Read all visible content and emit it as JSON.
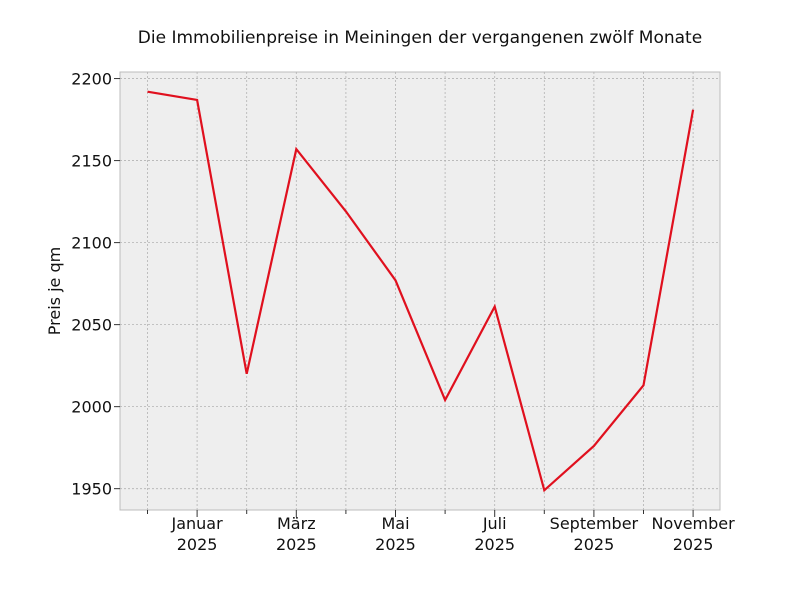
{
  "chart_data": {
    "type": "line",
    "title": "Die Immobilienpreise in Meiningen der vergangenen zwölf Monate",
    "xlabel": "",
    "ylabel": "Preis je qm",
    "x": [
      "2024-12",
      "2025-01",
      "2025-02",
      "2025-03",
      "2025-04",
      "2025-05",
      "2025-06",
      "2025-07",
      "2025-08",
      "2025-09",
      "2025-10",
      "2025-11"
    ],
    "x_tick_labels": [
      {
        "month": "Januar",
        "year": "2025"
      },
      {
        "month": "März",
        "year": "2025"
      },
      {
        "month": "Mai",
        "year": "2025"
      },
      {
        "month": "Juli",
        "year": "2025"
      },
      {
        "month": "September",
        "year": "2025"
      },
      {
        "month": "November",
        "year": "2025"
      }
    ],
    "series": [
      {
        "values": [
          2192,
          2187,
          2020,
          2157,
          2119,
          2077,
          2004,
          2061,
          1949,
          1976,
          2013,
          2181
        ]
      }
    ],
    "yticks": [
      1950,
      2000,
      2050,
      2100,
      2150,
      2200
    ],
    "ylim": [
      1937,
      2204
    ],
    "grid": true,
    "colors": {
      "line": "#e0101e",
      "plot_background": "#eeeeee",
      "grid": "#b2b2b2",
      "frame": "#bcbcbc"
    }
  }
}
